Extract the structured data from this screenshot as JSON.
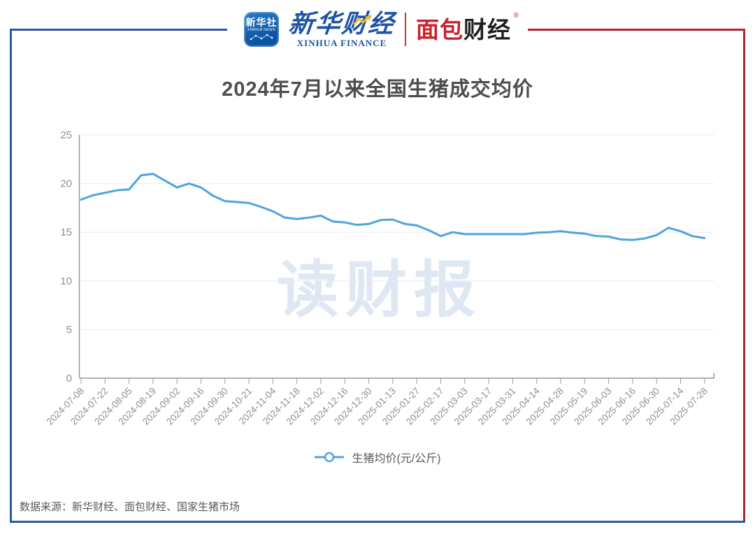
{
  "header": {
    "xinhua_news_icon": {
      "line1": "新华社",
      "line2": "XINHUA NEWS"
    },
    "xinhua_finance": {
      "cn": "新华财经",
      "en": "XINHUA FINANCE"
    },
    "bread_finance": {
      "part1": "面包",
      "part2": "财经",
      "reg_mark": "®"
    }
  },
  "title": "2024年7月以来全国生猪成交均价",
  "watermark": "读财报",
  "legend": {
    "label": "生猪均价(元/公斤)"
  },
  "footer": {
    "source": "数据来源：新华财经、面包财经、国家生猪市场"
  },
  "colors": {
    "line": "#4EA4DF",
    "frame_blue": "#2B57A0",
    "frame_red": "#B12433",
    "axis": "#999999",
    "grid": "#E6ECF5",
    "tick_label": "#8F8F8F",
    "title_text": "#4D4D4D",
    "watermark": "#DFE7F3"
  },
  "chart_data": {
    "type": "line",
    "title": "2024年7月以来全国生猪成交均价",
    "ylabel": "",
    "xlabel": "",
    "unit": "元/公斤",
    "ylim": [
      0,
      25
    ],
    "yticks": [
      0,
      5,
      10,
      15,
      20,
      25
    ],
    "grid": "horizontal",
    "legend_position": "bottom",
    "x": [
      "2024-07-08",
      "2024-07-15",
      "2024-07-22",
      "2024-07-29",
      "2024-08-05",
      "2024-08-12",
      "2024-08-19",
      "2024-08-26",
      "2024-09-02",
      "2024-09-09",
      "2024-09-16",
      "2024-09-23",
      "2024-09-30",
      "2024-10-14",
      "2024-10-21",
      "2024-10-28",
      "2024-11-04",
      "2024-11-11",
      "2024-11-18",
      "2024-11-25",
      "2024-12-02",
      "2024-12-09",
      "2024-12-16",
      "2024-12-23",
      "2024-12-30",
      "2025-01-06",
      "2025-01-13",
      "2025-01-20",
      "2025-01-27",
      "2025-02-10",
      "2025-02-17",
      "2025-02-24",
      "2025-03-03",
      "2025-03-10",
      "2025-03-17",
      "2025-03-24",
      "2025-03-31",
      "2025-04-07",
      "2025-04-14",
      "2025-04-21",
      "2025-04-28",
      "2025-05-12",
      "2025-05-19",
      "2025-05-26",
      "2025-06-03",
      "2025-06-09",
      "2025-06-16",
      "2025-06-23",
      "2025-06-30",
      "2025-07-07",
      "2025-07-14",
      "2025-07-21",
      "2025-07-28"
    ],
    "x_tick_labels": [
      "2024-07-08",
      "2024-07-22",
      "2024-08-05",
      "2024-08-19",
      "2024-09-02",
      "2024-09-16",
      "2024-09-30",
      "2024-10-21",
      "2024-11-04",
      "2024-11-18",
      "2024-12-02",
      "2024-12-16",
      "2024-12-30",
      "2025-01-13",
      "2025-01-27",
      "2025-02-17",
      "2025-03-03",
      "2025-03-17",
      "2025-03-31",
      "2025-04-14",
      "2025-04-28",
      "2025-05-19",
      "2025-06-03",
      "2025-06-16",
      "2025-06-30",
      "2025-07-14",
      "2025-07-28"
    ],
    "series": [
      {
        "name": "生猪均价(元/公斤)",
        "values": [
          18.35,
          18.8,
          19.05,
          19.3,
          19.4,
          20.85,
          21.0,
          20.3,
          19.6,
          20.0,
          19.6,
          18.75,
          18.2,
          18.1,
          18.0,
          17.6,
          17.15,
          16.5,
          16.35,
          16.5,
          16.7,
          16.1,
          16.0,
          15.75,
          15.85,
          16.25,
          16.3,
          15.85,
          15.7,
          15.2,
          14.6,
          15.0,
          14.8,
          14.8,
          14.8,
          14.8,
          14.8,
          14.8,
          14.95,
          15.0,
          15.1,
          14.95,
          14.85,
          14.6,
          14.55,
          14.25,
          14.2,
          14.35,
          14.7,
          15.45,
          15.1,
          14.6,
          14.4
        ]
      }
    ]
  }
}
